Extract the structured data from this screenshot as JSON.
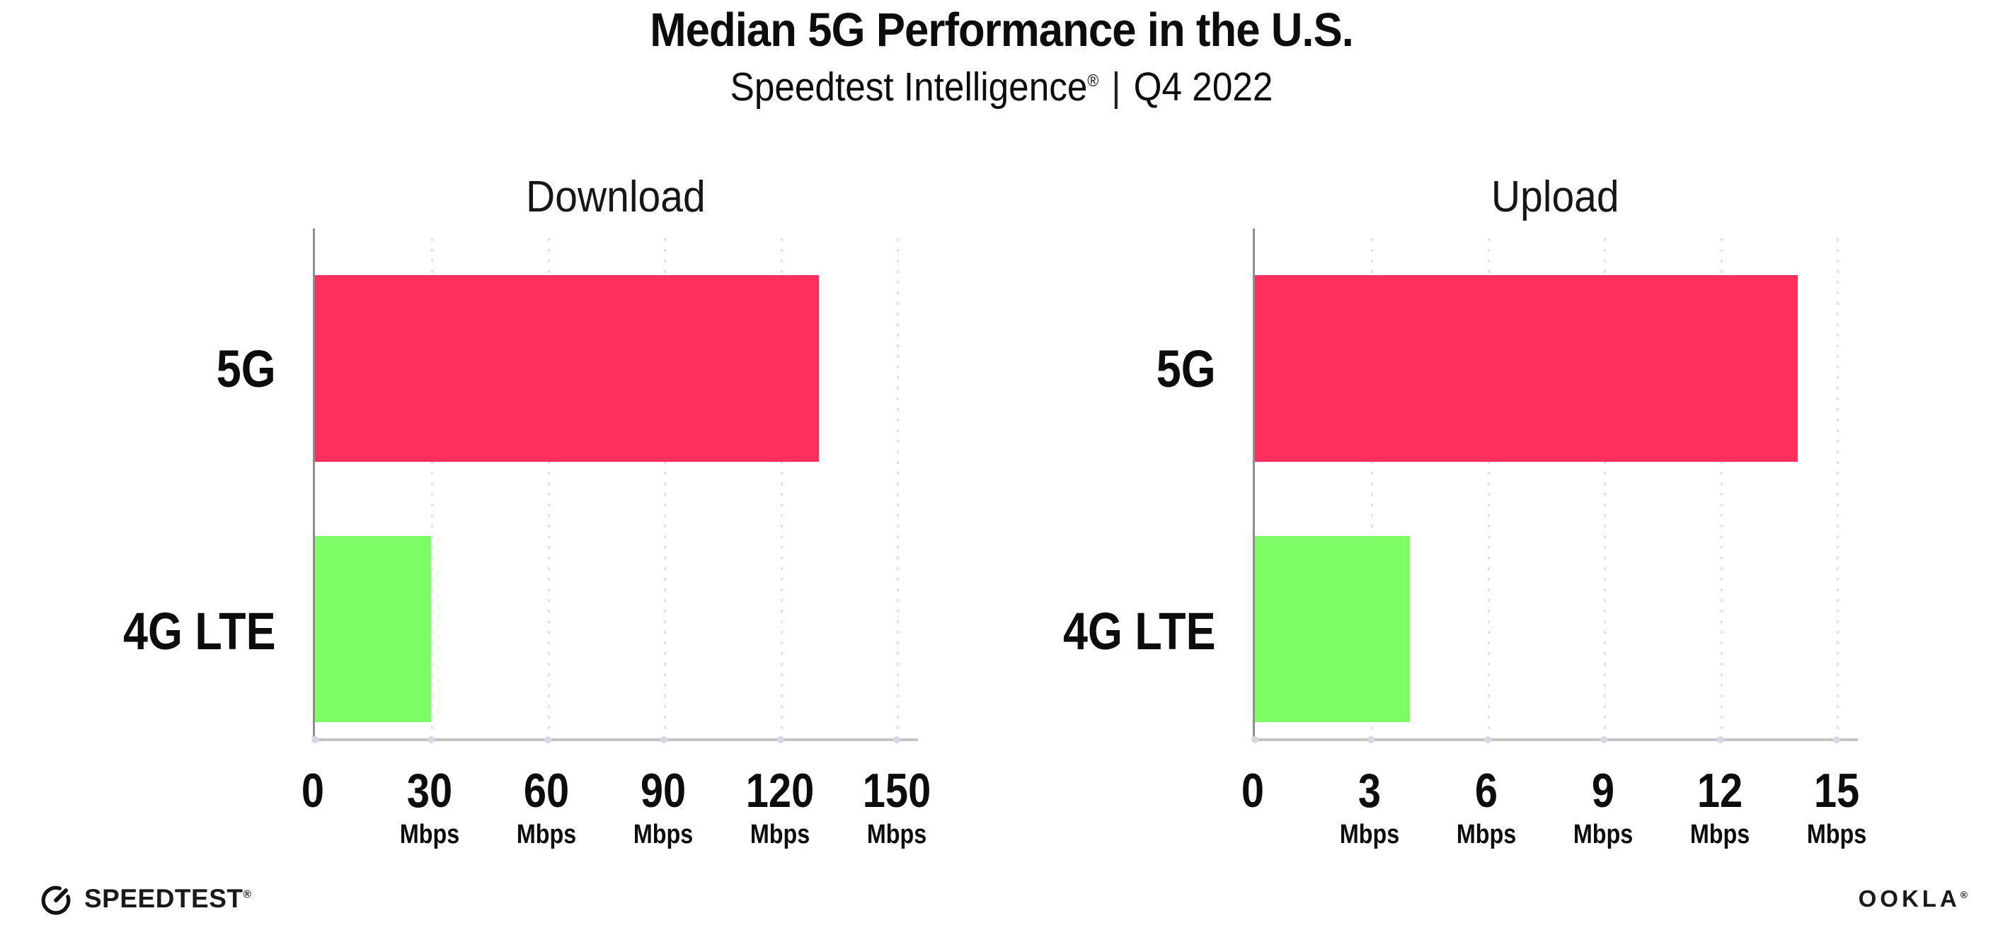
{
  "header": {
    "title": "Median 5G Performance in the U.S.",
    "subtitle_brand": "Speedtest Intelligence",
    "subtitle_reg_mark": "®",
    "subtitle_separator": "|",
    "subtitle_period": "Q4 2022"
  },
  "colors": {
    "bar_5g": "#FF2E5B",
    "bar_4g_lte": "#7EFC66",
    "grid": "#E0E0EA",
    "axis_y": "#8F8F8F",
    "axis_x": "#C4C4C4",
    "tick_dot": "#D8D8E4",
    "text": "#0C0C0C"
  },
  "chart_data": [
    {
      "type": "bar",
      "orientation": "horizontal",
      "title": "Download",
      "categories": [
        "5G",
        "4G LTE"
      ],
      "values": [
        130,
        30
      ],
      "unit": "Mbps",
      "xlim": [
        0,
        150
      ],
      "xticks": [
        0,
        30,
        60,
        90,
        120,
        150
      ],
      "xtick_unit_label": "Mbps",
      "bar_colors": [
        "#FF2E5B",
        "#7EFC66"
      ],
      "grid": "dotted-vertical",
      "legend": "none"
    },
    {
      "type": "bar",
      "orientation": "horizontal",
      "title": "Upload",
      "categories": [
        "5G",
        "4G LTE"
      ],
      "values": [
        14,
        4
      ],
      "unit": "Mbps",
      "xlim": [
        0,
        15
      ],
      "xticks": [
        0,
        3,
        6,
        9,
        12,
        15
      ],
      "xtick_unit_label": "Mbps",
      "bar_colors": [
        "#FF2E5B",
        "#7EFC66"
      ],
      "grid": "dotted-vertical",
      "legend": "none"
    }
  ],
  "footer": {
    "speedtest_label": "SPEEDTEST",
    "speedtest_mark": "®",
    "ookla_label": "OOKLA",
    "ookla_mark": "®"
  }
}
